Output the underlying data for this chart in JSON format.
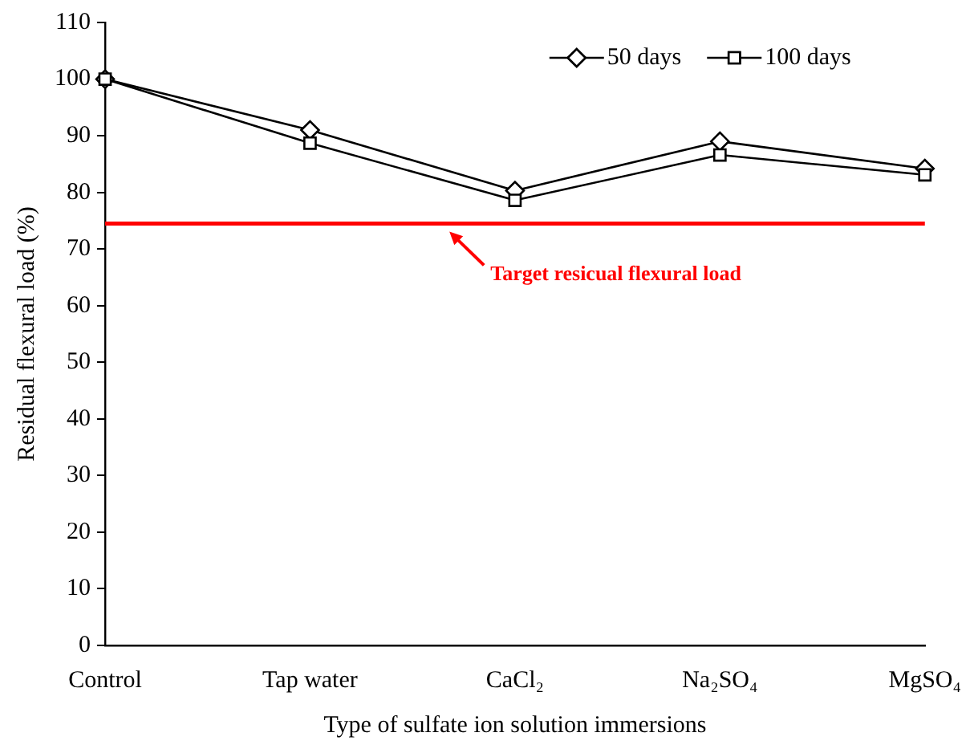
{
  "chart_data": {
    "type": "line",
    "xlabel": "Type of sulfate ion solution immersions",
    "ylabel": "Residual flexural load (%)",
    "categories": [
      "Control",
      "Tap water",
      "CaCl₂",
      "Na₂SO₄",
      "MgSO₄"
    ],
    "series": [
      {
        "name": "50 days",
        "color": "#000000",
        "marker": "diamond",
        "values": [
          100,
          91,
          80.3,
          89,
          84.2
        ]
      },
      {
        "name": "100 days",
        "color": "#000000",
        "marker": "square",
        "values": [
          100,
          88.7,
          78.6,
          86.6,
          83.1
        ]
      }
    ],
    "ylim": [
      0,
      110
    ],
    "yticks": [
      0,
      10,
      20,
      30,
      40,
      50,
      60,
      70,
      80,
      90,
      100,
      110
    ],
    "ref_lines": [
      {
        "axis": "y",
        "value": 74.5,
        "label": "Target resicual flexural load",
        "color": "#ff0000"
      }
    ],
    "legend": "top right",
    "grid": false,
    "line_style": "solid"
  }
}
